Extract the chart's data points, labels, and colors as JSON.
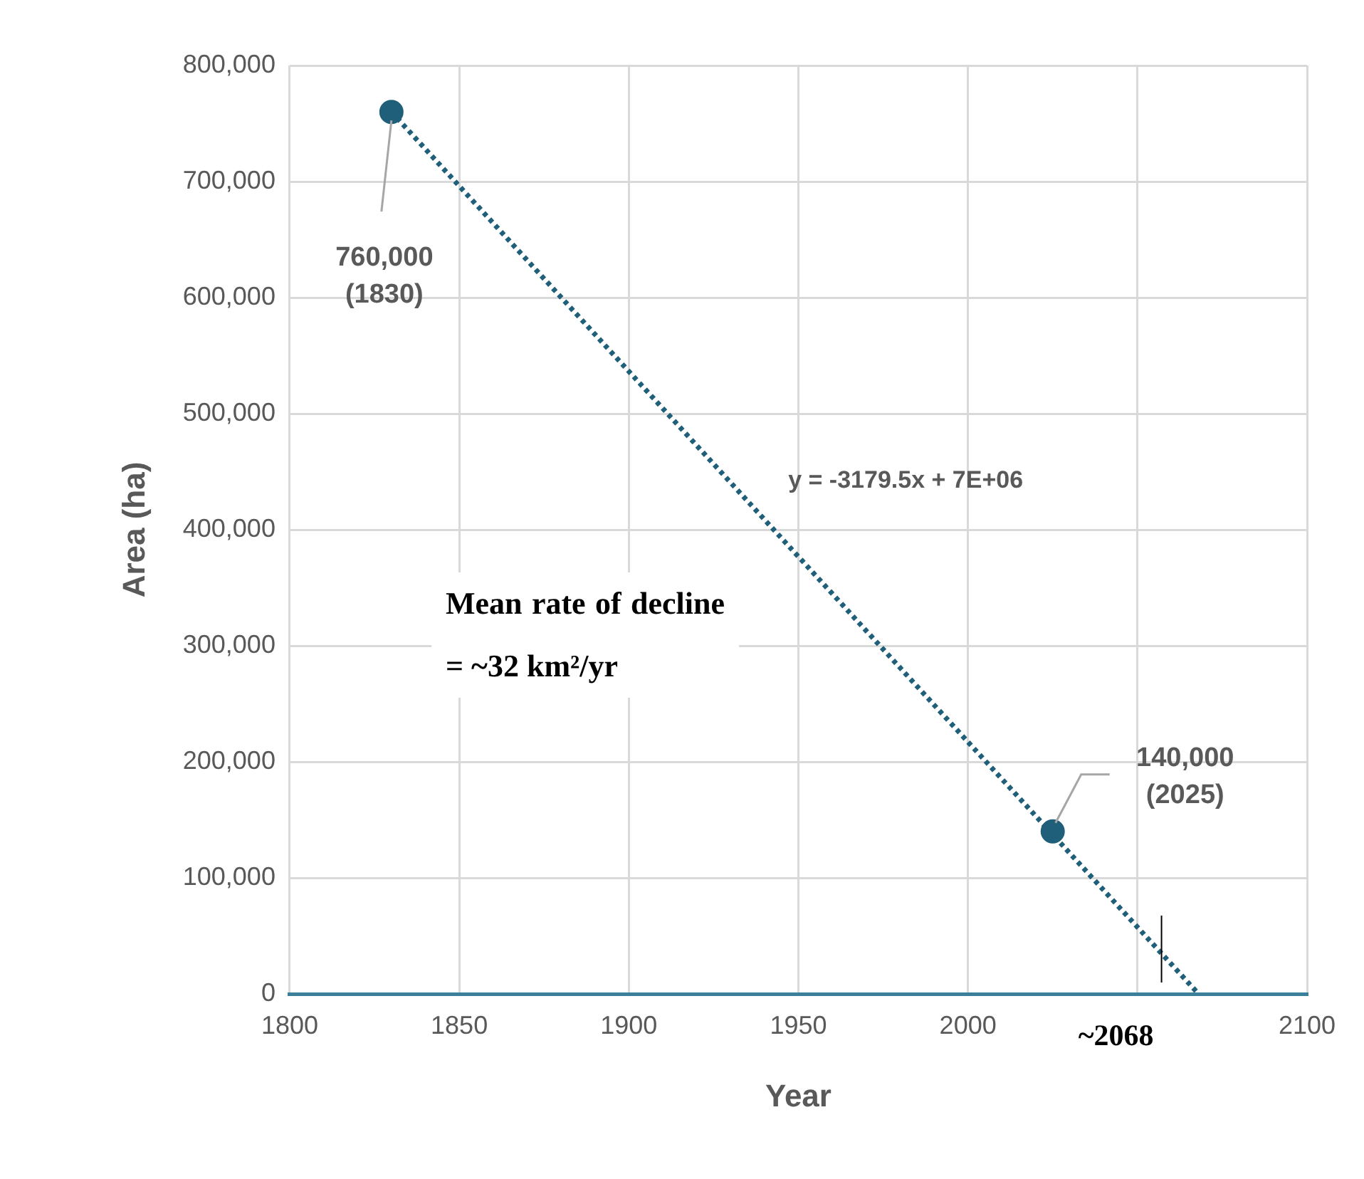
{
  "chart_data": {
    "type": "scatter",
    "xlabel": "Year",
    "ylabel": "Area (ha)",
    "xlim": [
      1800,
      2100
    ],
    "xticks": [
      1800,
      1850,
      1900,
      1950,
      2000,
      {
        "value": 2050,
        "label": null
      },
      2100
    ],
    "ylim": [
      0,
      800000
    ],
    "yticks": [
      {
        "value": 0,
        "label": "0"
      },
      {
        "value": 100000,
        "label": "100,000"
      },
      {
        "value": 200000,
        "label": "200,000"
      },
      {
        "value": 300000,
        "label": "300,000"
      },
      {
        "value": 400000,
        "label": "400,000"
      },
      {
        "value": 500000,
        "label": "500,000"
      },
      {
        "value": 600000,
        "label": "600,000"
      },
      {
        "value": 700000,
        "label": "700,000"
      },
      {
        "value": 800000,
        "label": "800,000"
      }
    ],
    "grid": true,
    "legend": false,
    "series": [
      {
        "color": "#1f5f7a",
        "marker": "circle",
        "x": [
          1830,
          2025
        ],
        "values": [
          760000,
          140000
        ]
      },
      {
        "type": "line",
        "color": "#1f5f7a",
        "line_style": "dotted",
        "marker": "none",
        "x": [
          1830,
          2068
        ],
        "values": [
          760000,
          0
        ]
      }
    ],
    "annotations": [
      {
        "text": "760,000 (1830)",
        "x": 1830,
        "y": 760000
      },
      {
        "text": "140,000 (2025)",
        "x": 2025,
        "y": 140000
      },
      "y = -3179.5x + 7E+06",
      "Mean rate of decline = ~32 km²/yr",
      {
        "text": "~2068",
        "x": 2068,
        "y": 0
      }
    ]
  }
}
